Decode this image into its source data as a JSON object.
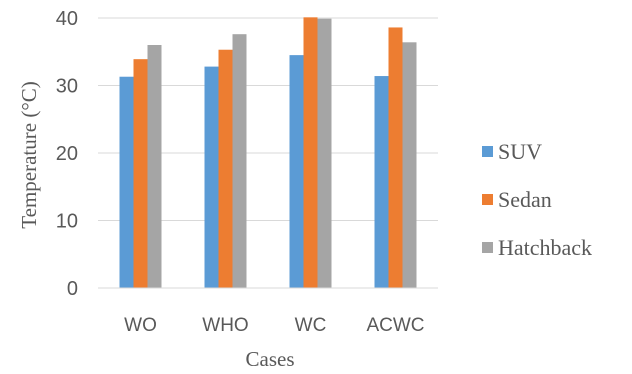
{
  "chart_data": {
    "type": "bar",
    "categories": [
      "WO",
      "WHO",
      "WC",
      "ACWC"
    ],
    "series": [
      {
        "name": "SUV",
        "values": [
          31.3,
          32.8,
          34.5,
          31.4
        ],
        "color": "#5b9bd5"
      },
      {
        "name": "Sedan",
        "values": [
          33.9,
          35.3,
          40.1,
          38.6
        ],
        "color": "#ed7d31"
      },
      {
        "name": "Hatchback",
        "values": [
          36.0,
          37.6,
          39.9,
          36.4
        ],
        "color": "#a5a5a5"
      }
    ],
    "xlabel": "Cases",
    "ylabel": "Temperature (°C)",
    "ylim": [
      0,
      40
    ],
    "yticks": [
      0,
      10,
      20,
      30,
      40
    ],
    "grid": true,
    "legend_position": "right"
  }
}
